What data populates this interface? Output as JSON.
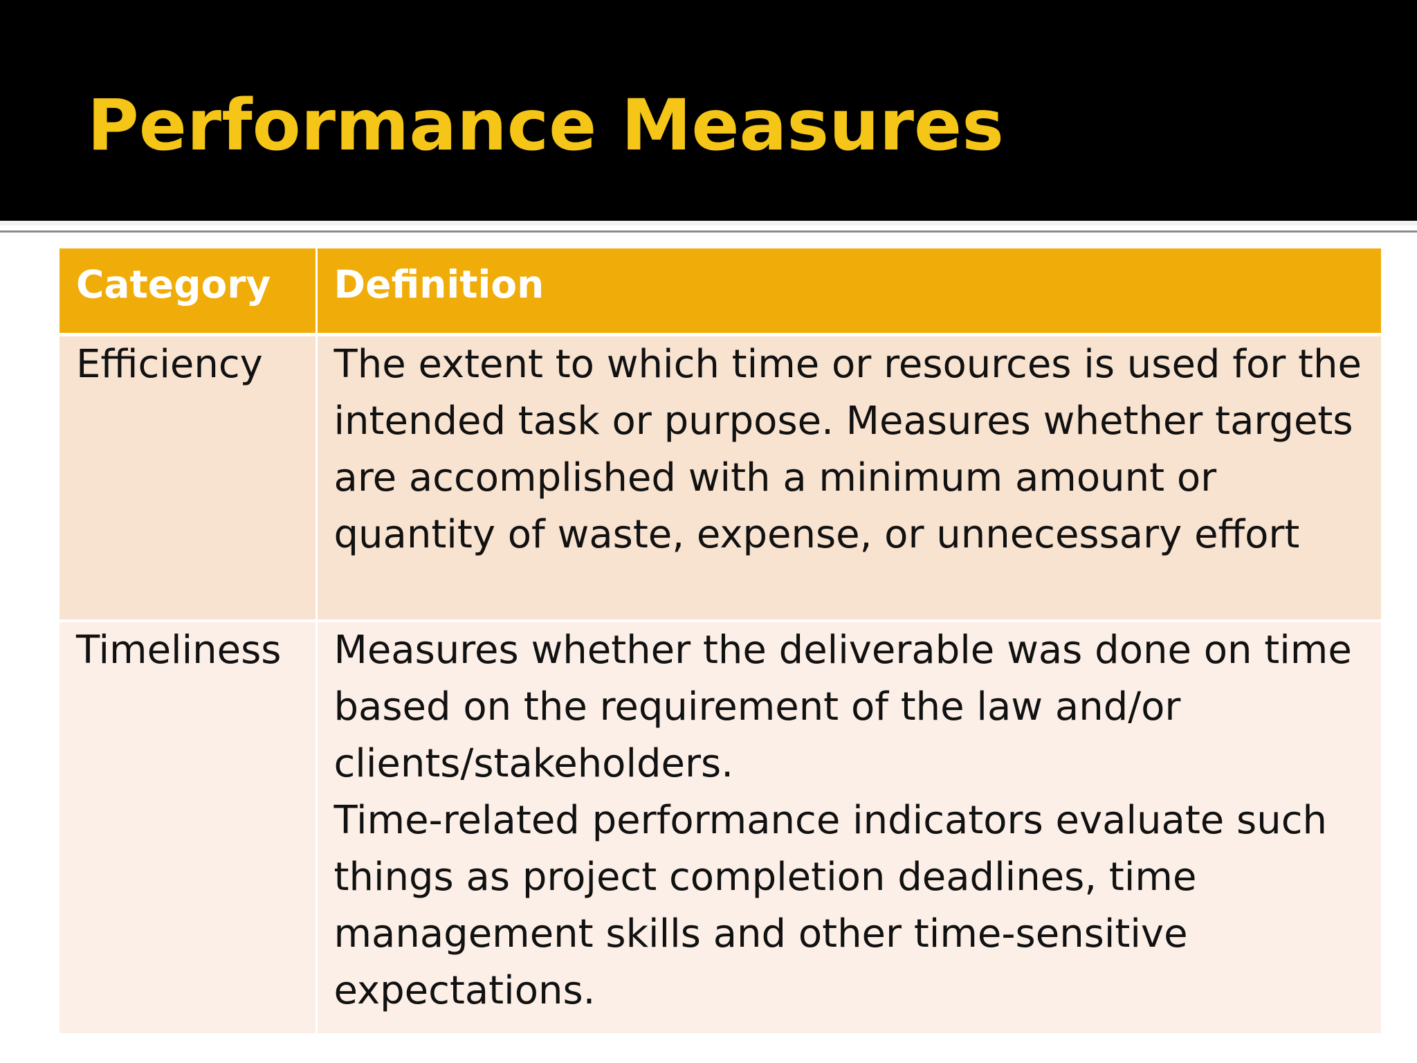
{
  "slide": {
    "title": "Performance Measures"
  },
  "table": {
    "headers": {
      "category": "Category",
      "definition": "Definition"
    },
    "rows": [
      {
        "category": "Efficiency",
        "definition_lines": [
          "The extent to which time or resources is used for the",
          "intended task or purpose. Measures whether targets",
          "are accomplished with a minimum amount or",
          "quantity of waste, expense, or unnecessary effort"
        ]
      },
      {
        "category": "Timeliness",
        "definition_lines": [
          "Measures whether the deliverable was done on time",
          "based on the requirement of the law and/or",
          "clients/stakeholders.",
          "Time-related performance indicators evaluate such",
          "things as project completion deadlines, time",
          "management skills and other time-sensitive",
          "expectations."
        ]
      }
    ]
  },
  "colors": {
    "title_band": "#000000",
    "title_text": "#f5c518",
    "header_fill": "#f0ad09",
    "row1_fill": "#f8e2d0",
    "row2_fill": "#fcefe7"
  }
}
